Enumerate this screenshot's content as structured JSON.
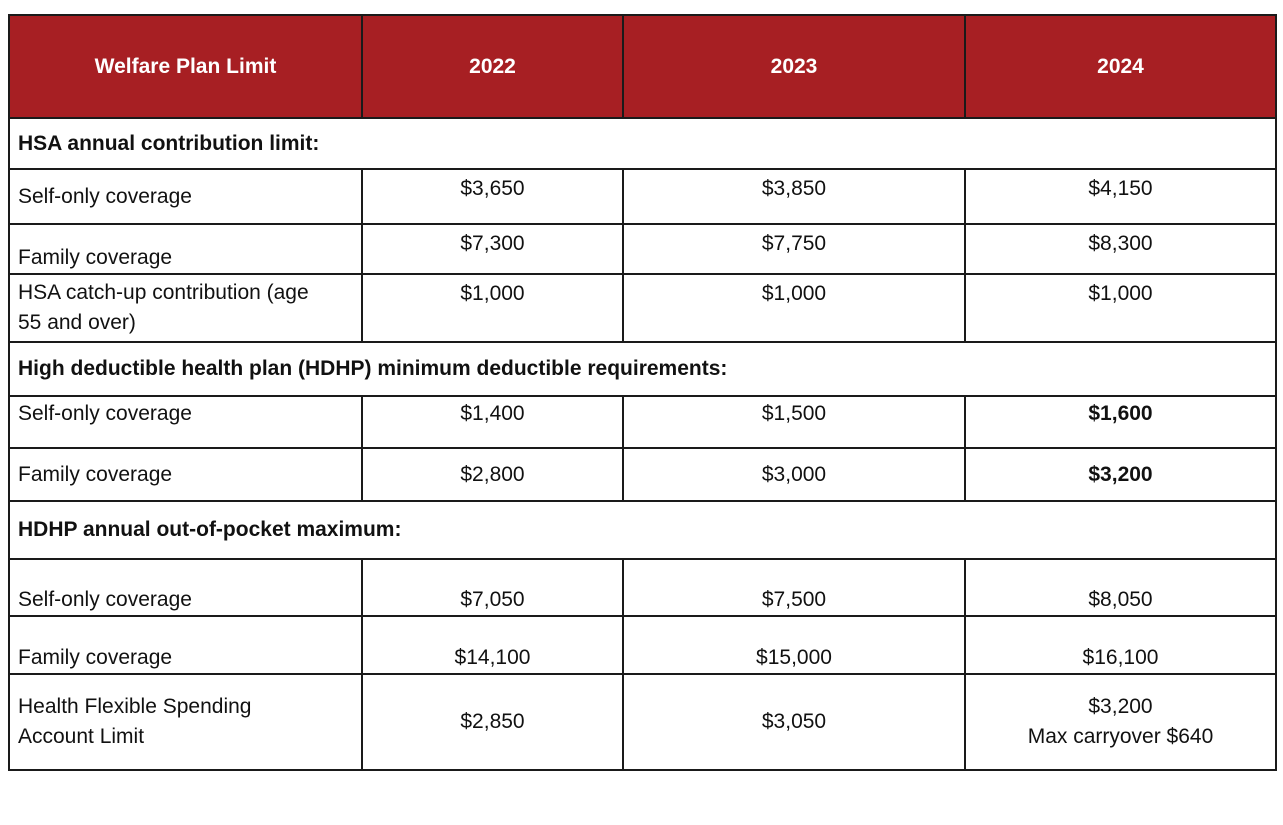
{
  "header": {
    "col_label": "Welfare Plan Limit",
    "years": [
      "2022",
      "2023",
      "2024"
    ],
    "header_bg": "#a71f23",
    "header_text": "#ffffff"
  },
  "sections": [
    {
      "title": "HSA annual contribution limit:",
      "rows": [
        {
          "label": "Self-only coverage",
          "values": [
            "$3,650",
            "$3,850",
            "$4,150"
          ]
        },
        {
          "label": "Family coverage",
          "values": [
            "$7,300",
            "$7,750",
            "$8,300"
          ]
        },
        {
          "label": "HSA catch-up contribution (age 55 and over)",
          "label_lines": [
            "HSA catch-up contribution (age",
            "55 and over)"
          ],
          "values": [
            "$1,000",
            "$1,000",
            "$1,000"
          ]
        }
      ]
    },
    {
      "title": "High deductible health plan (HDHP) minimum deductible requirements:",
      "rows": [
        {
          "label": "Self-only coverage",
          "values": [
            "$1,400",
            "$1,500",
            "$1,600"
          ],
          "bold_last": true
        },
        {
          "label": "Family coverage",
          "values": [
            "$2,800",
            "$3,000",
            "$3,200"
          ],
          "bold_last": true
        }
      ]
    },
    {
      "title": "HDHP annual out-of-pocket maximum:",
      "rows": [
        {
          "label": "Self-only coverage",
          "values": [
            "$7,050",
            "$7,500",
            "$8,050"
          ]
        },
        {
          "label": "Family coverage",
          "values": [
            "$14,100",
            "$15,000",
            "$16,100"
          ]
        }
      ]
    }
  ],
  "fsa_row": {
    "label_lines": [
      "Health Flexible Spending",
      "Account Limit"
    ],
    "values": [
      "$2,850",
      "$3,050"
    ],
    "value_2024_lines": [
      "$3,200",
      "Max carryover $640"
    ]
  }
}
